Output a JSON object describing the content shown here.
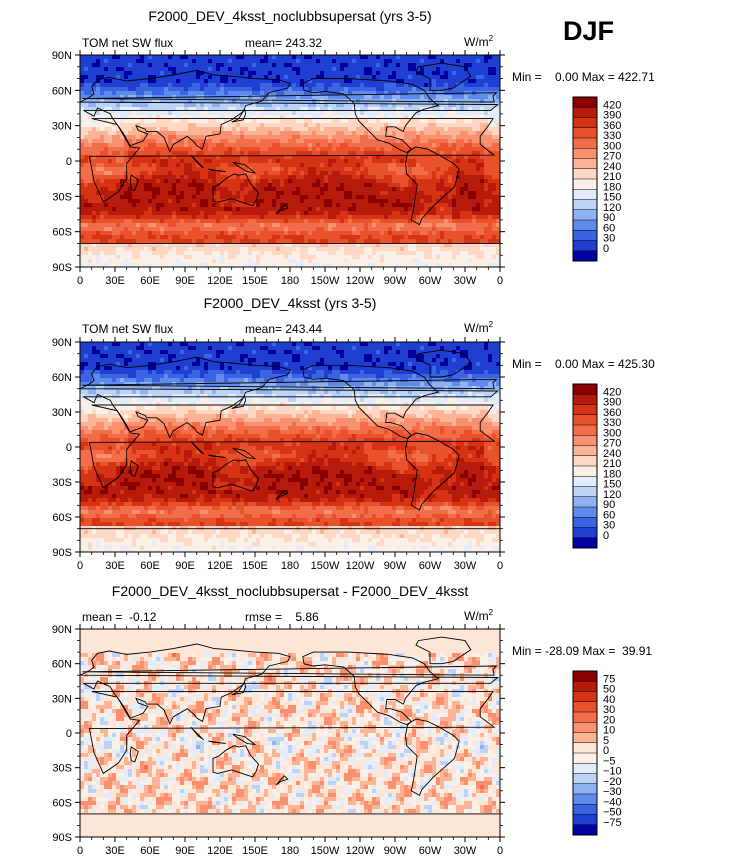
{
  "season": "DJF",
  "units": "W/m",
  "units_sup": "2",
  "coastline_style": "thin black continental outlines",
  "chart_data": [
    {
      "type": "heatmap",
      "title": "F2000_DEV_4ksst_noclubbsupersat (yrs 3-5)",
      "variable": "TOM net SW flux",
      "stat_text": "mean= 243.32",
      "mean": 243.32,
      "min": 0.0,
      "max": 422.71,
      "min_text": "Min =    0.00 Max = 422.71",
      "x_ticks": [
        "0",
        "30E",
        "60E",
        "90E",
        "120E",
        "150E",
        "180",
        "150W",
        "120W",
        "90W",
        "60W",
        "30W",
        "0"
      ],
      "y_ticks": [
        "90N",
        "60N",
        "30N",
        "0",
        "30S",
        "60S",
        "90S"
      ],
      "colorbar": {
        "levels": [
          "420",
          "390",
          "360",
          "330",
          "300",
          "270",
          "240",
          "210",
          "180",
          "150",
          "120",
          "90",
          "60",
          "30",
          "0"
        ],
        "colors": [
          "#8b0000",
          "#b51a0a",
          "#d63314",
          "#e8512b",
          "#f26e4a",
          "#f99070",
          "#fcb497",
          "#fdd8c5",
          "#fbf0e8",
          "#e2ecfa",
          "#bcd3f7",
          "#8fb2f2",
          "#5f8bec",
          "#3b64e2",
          "#1f3fd1",
          "#0000a0"
        ]
      },
      "field": "sw_flux"
    },
    {
      "type": "heatmap",
      "title": "F2000_DEV_4ksst (yrs 3-5)",
      "variable": "TOM net SW flux",
      "stat_text": "mean= 243.44",
      "mean": 243.44,
      "min": 0.0,
      "max": 425.3,
      "min_text": "Min =    0.00 Max = 425.30",
      "x_ticks": [
        "0",
        "30E",
        "60E",
        "90E",
        "120E",
        "150E",
        "180",
        "150W",
        "120W",
        "90W",
        "60W",
        "30W",
        "0"
      ],
      "y_ticks": [
        "90N",
        "60N",
        "30N",
        "0",
        "30S",
        "60S",
        "90S"
      ],
      "colorbar": {
        "levels": [
          "420",
          "390",
          "360",
          "330",
          "300",
          "270",
          "240",
          "210",
          "180",
          "150",
          "120",
          "90",
          "60",
          "30",
          "0"
        ],
        "colors": [
          "#8b0000",
          "#b51a0a",
          "#d63314",
          "#e8512b",
          "#f26e4a",
          "#f99070",
          "#fcb497",
          "#fdd8c5",
          "#fbf0e8",
          "#e2ecfa",
          "#bcd3f7",
          "#8fb2f2",
          "#5f8bec",
          "#3b64e2",
          "#1f3fd1",
          "#0000a0"
        ]
      },
      "field": "sw_flux"
    },
    {
      "type": "heatmap",
      "title": "F2000_DEV_4ksst_noclubbsupersat - F2000_DEV_4ksst",
      "variable": "",
      "stat_text": "mean =  -0.12",
      "stat2_text": "rmse =    5.86",
      "mean": -0.12,
      "rmse": 5.86,
      "min": -28.09,
      "max": 39.91,
      "min_text": "Min = -28.09 Max =  39.91",
      "x_ticks": [
        "0",
        "30E",
        "60E",
        "90E",
        "120E",
        "150E",
        "180",
        "150W",
        "120W",
        "90W",
        "60W",
        "30W",
        "0"
      ],
      "y_ticks": [
        "90N",
        "60N",
        "30N",
        "0",
        "30S",
        "60S",
        "90S"
      ],
      "colorbar": {
        "levels": [
          "75",
          "50",
          "40",
          "30",
          "20",
          "10",
          "5",
          "0",
          "−5",
          "−10",
          "−20",
          "−30",
          "−40",
          "−50",
          "−75"
        ],
        "colors": [
          "#8b0000",
          "#b51a0a",
          "#d63314",
          "#e8512b",
          "#f26e4a",
          "#f99070",
          "#fcb497",
          "#fde6d8",
          "#fbf0e8",
          "#e2ecfa",
          "#bcd3f7",
          "#8fb2f2",
          "#5f8bec",
          "#3b64e2",
          "#1f3fd1",
          "#0000a0"
        ]
      },
      "field": "difference"
    }
  ]
}
